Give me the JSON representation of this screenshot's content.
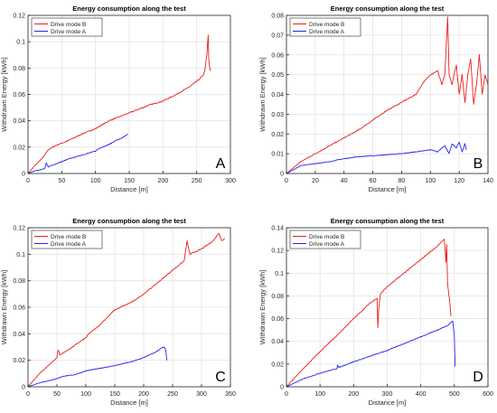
{
  "chart_data": [
    {
      "type": "line",
      "panel_letter": "A",
      "title": "Energy consumption along the test",
      "xlabel": "Distance [m]",
      "ylabel": "Withdrawn Energy [kWh]",
      "xlim": [
        0,
        300
      ],
      "ylim": [
        0,
        0.12
      ],
      "xticks": [
        0,
        50,
        100,
        150,
        200,
        250,
        300
      ],
      "yticks": [
        0,
        0.02,
        0.04,
        0.06,
        0.08,
        0.1,
        0.12
      ],
      "xtick_labels": [
        "0",
        "50",
        "100",
        "150",
        "200",
        "250",
        "300"
      ],
      "ytick_labels": [
        "0",
        "0.02",
        "0.04",
        "0.06",
        "0.08",
        "0.1",
        "0.12"
      ],
      "grid": true,
      "legend_position": "top-left",
      "series": [
        {
          "name": "Drive mode B",
          "color": "#ee1c1c",
          "x": [
            0,
            10,
            20,
            25,
            27,
            30,
            40,
            50,
            60,
            80,
            100,
            110,
            120,
            150,
            180,
            200,
            220,
            240,
            250,
            255,
            260,
            262,
            265,
            267,
            268,
            270
          ],
          "y": [
            0,
            0.006,
            0.011,
            0.014,
            0.016,
            0.018,
            0.021,
            0.023,
            0.025,
            0.03,
            0.034,
            0.037,
            0.04,
            0.046,
            0.052,
            0.055,
            0.06,
            0.066,
            0.07,
            0.072,
            0.075,
            0.078,
            0.09,
            0.105,
            0.085,
            0.078
          ]
        },
        {
          "name": "Drive mode A",
          "color": "#2222ee",
          "x": [
            0,
            10,
            20,
            25,
            27,
            30,
            40,
            50,
            60,
            80,
            100,
            105,
            110,
            120,
            130,
            140,
            148
          ],
          "y": [
            0,
            0.002,
            0.003,
            0.004,
            0.008,
            0.005,
            0.007,
            0.009,
            0.011,
            0.014,
            0.017,
            0.019,
            0.02,
            0.022,
            0.025,
            0.027,
            0.03
          ]
        }
      ]
    },
    {
      "type": "line",
      "panel_letter": "B",
      "title": "Energy consumption along the test",
      "xlabel": "Distance [m]",
      "ylabel": "Withdrawn Energy [kWh]",
      "xlim": [
        0,
        140
      ],
      "ylim": [
        0,
        0.08
      ],
      "xticks": [
        0,
        20,
        40,
        60,
        80,
        100,
        120,
        140
      ],
      "yticks": [
        0,
        0.01,
        0.02,
        0.03,
        0.04,
        0.05,
        0.06,
        0.07,
        0.08
      ],
      "xtick_labels": [
        "0",
        "20",
        "40",
        "60",
        "80",
        "100",
        "120",
        "140"
      ],
      "ytick_labels": [
        "0",
        "0.01",
        "0.02",
        "0.03",
        "0.04",
        "0.05",
        "0.06",
        "0.07",
        "0.08"
      ],
      "grid": true,
      "legend_position": "top-left",
      "series": [
        {
          "name": "Drive mode B",
          "color": "#ee1c1c",
          "x": [
            0,
            5,
            10,
            20,
            30,
            40,
            50,
            60,
            70,
            80,
            90,
            95,
            100,
            105,
            108,
            110,
            112,
            113,
            115,
            118,
            120,
            122,
            124,
            126,
            128,
            130,
            132,
            134,
            136,
            138,
            140
          ],
          "y": [
            0,
            0.003,
            0.006,
            0.01,
            0.014,
            0.018,
            0.022,
            0.027,
            0.032,
            0.036,
            0.04,
            0.046,
            0.05,
            0.052,
            0.045,
            0.05,
            0.079,
            0.05,
            0.045,
            0.055,
            0.04,
            0.05,
            0.036,
            0.05,
            0.058,
            0.035,
            0.045,
            0.06,
            0.04,
            0.05,
            0.045
          ]
        },
        {
          "name": "Drive mode A",
          "color": "#2222ee",
          "x": [
            0,
            5,
            10,
            20,
            30,
            40,
            50,
            60,
            70,
            80,
            90,
            100,
            105,
            110,
            113,
            115,
            118,
            120,
            122,
            124,
            125
          ],
          "y": [
            0,
            0.002,
            0.004,
            0.005,
            0.006,
            0.0075,
            0.0085,
            0.009,
            0.0095,
            0.01,
            0.011,
            0.012,
            0.011,
            0.014,
            0.01,
            0.015,
            0.013,
            0.016,
            0.011,
            0.015,
            0.012
          ]
        }
      ]
    },
    {
      "type": "line",
      "panel_letter": "C",
      "title": "Energy consumption along the test",
      "xlabel": "Distance [m]",
      "ylabel": "Withdrawn Energy [kWh]",
      "xlim": [
        0,
        350
      ],
      "ylim": [
        0,
        0.12
      ],
      "xticks": [
        0,
        50,
        100,
        150,
        200,
        250,
        300,
        350
      ],
      "yticks": [
        0,
        0.02,
        0.04,
        0.06,
        0.08,
        0.1,
        0.12
      ],
      "xtick_labels": [
        "0",
        "50",
        "100",
        "150",
        "200",
        "250",
        "300",
        "350"
      ],
      "ytick_labels": [
        "0",
        "0.02",
        "0.04",
        "0.06",
        "0.08",
        "0.1",
        "0.12"
      ],
      "grid": true,
      "legend_position": "top-left",
      "series": [
        {
          "name": "Drive mode B",
          "color": "#ee1c1c",
          "x": [
            0,
            20,
            40,
            50,
            52,
            55,
            70,
            100,
            105,
            120,
            150,
            180,
            200,
            220,
            250,
            270,
            275,
            280,
            300,
            320,
            330,
            335,
            340
          ],
          "y": [
            0,
            0.01,
            0.018,
            0.022,
            0.028,
            0.024,
            0.028,
            0.037,
            0.04,
            0.045,
            0.058,
            0.064,
            0.07,
            0.077,
            0.088,
            0.095,
            0.11,
            0.1,
            0.104,
            0.11,
            0.116,
            0.11,
            0.112
          ]
        },
        {
          "name": "Drive mode A",
          "color": "#2222ee",
          "x": [
            0,
            20,
            50,
            60,
            80,
            100,
            150,
            180,
            200,
            220,
            230,
            235,
            238,
            240
          ],
          "y": [
            0,
            0.003,
            0.006,
            0.008,
            0.009,
            0.012,
            0.016,
            0.019,
            0.022,
            0.026,
            0.029,
            0.03,
            0.028,
            0.02
          ]
        }
      ]
    },
    {
      "type": "line",
      "panel_letter": "D",
      "title": "Energy consumption along the test",
      "xlabel": "Distance [m]",
      "ylabel": "Withdrawn Energy [kWh]",
      "xlim": [
        0,
        600
      ],
      "ylim": [
        0,
        0.14
      ],
      "xticks": [
        0,
        100,
        200,
        300,
        400,
        500,
        600
      ],
      "yticks": [
        0,
        0.02,
        0.04,
        0.06,
        0.08,
        0.1,
        0.12,
        0.14
      ],
      "xtick_labels": [
        "0",
        "100",
        "200",
        "300",
        "400",
        "500",
        "600"
      ],
      "ytick_labels": [
        "0",
        "0.02",
        "0.04",
        "0.06",
        "0.08",
        "0.1",
        "0.12",
        "0.14"
      ],
      "grid": true,
      "legend_position": "top-left",
      "series": [
        {
          "name": "Drive mode B",
          "color": "#ee1c1c",
          "x": [
            0,
            50,
            100,
            150,
            200,
            250,
            270,
            272,
            275,
            280,
            300,
            350,
            400,
            450,
            470,
            475,
            477,
            480,
            485,
            490
          ],
          "y": [
            0,
            0.016,
            0.031,
            0.045,
            0.06,
            0.074,
            0.078,
            0.052,
            0.07,
            0.082,
            0.088,
            0.1,
            0.112,
            0.124,
            0.13,
            0.11,
            0.125,
            0.09,
            0.078,
            0.062
          ]
        },
        {
          "name": "Drive mode A",
          "color": "#2222ee",
          "x": [
            0,
            50,
            100,
            150,
            152,
            155,
            200,
            250,
            300,
            350,
            400,
            450,
            480,
            495,
            500,
            502
          ],
          "y": [
            0,
            0.007,
            0.012,
            0.016,
            0.019,
            0.017,
            0.022,
            0.027,
            0.032,
            0.038,
            0.044,
            0.05,
            0.054,
            0.058,
            0.045,
            0.018
          ]
        }
      ]
    }
  ]
}
